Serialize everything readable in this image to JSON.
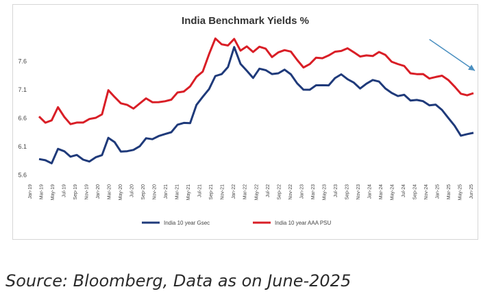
{
  "chart_data": {
    "type": "line",
    "title": "India Benchmark Yields %",
    "xlabel": "",
    "ylabel": "",
    "ylim": [
      5.5,
      8.0
    ],
    "y_ticks": [
      "5.6",
      "6.1",
      "6.6",
      "7.1",
      "7.6"
    ],
    "y_tick_values": [
      5.6,
      6.1,
      6.6,
      7.1,
      7.6
    ],
    "x_tick_labels": [
      "Jan-19",
      "Mar-19",
      "May-19",
      "Jul-19",
      "Sep-19",
      "Nov-19",
      "Jan-20",
      "Mar-20",
      "May-20",
      "Jul-20",
      "Sep-20",
      "Nov-20",
      "Jan-21",
      "Mar-21",
      "May-21",
      "Jul-21",
      "Sep-21",
      "Nov-21",
      "Jan-22",
      "Mar-22",
      "May-22",
      "Jul-22",
      "Sep-22",
      "Nov-22",
      "Jan-23",
      "Mar-23",
      "May-23",
      "Jul-23",
      "Sep-23",
      "Nov-23",
      "Jan-24",
      "Mar-24",
      "May-24",
      "Jul-24",
      "Sep-24",
      "Nov-24",
      "Jan-25",
      "Mar-25",
      "May-25",
      "Jun-25"
    ],
    "grid": false,
    "legend_position": "bottom",
    "series": [
      {
        "name": "India 10 year Gsec",
        "color": "#1f3a7a",
        "values": [
          5.85,
          5.82,
          5.84,
          6.05,
          6.0,
          5.92,
          5.9,
          5.88,
          5.86,
          5.88,
          5.95,
          6.22,
          6.15,
          6.05,
          6.0,
          6.02,
          6.1,
          6.2,
          6.25,
          6.3,
          6.28,
          6.35,
          6.45,
          6.5,
          6.55,
          6.8,
          6.95,
          7.1,
          7.3,
          7.4,
          7.5,
          7.8,
          7.55,
          7.4,
          7.3,
          7.5,
          7.4,
          7.35,
          7.38,
          7.42,
          7.4,
          7.2,
          7.05,
          7.1,
          7.15,
          7.18,
          7.2,
          7.25,
          7.35,
          7.28,
          7.2,
          7.15,
          7.18,
          7.22,
          7.25,
          7.1,
          7.05,
          7.0,
          6.95,
          6.9,
          6.92,
          6.88,
          6.85,
          6.8,
          6.7,
          6.62,
          6.45,
          6.3,
          6.32,
          6.28
        ]
      },
      {
        "name": "India 10 year AAA PSU",
        "color": "#d91e26",
        "values": [
          6.6,
          6.5,
          6.55,
          6.75,
          6.65,
          6.5,
          6.48,
          6.52,
          6.55,
          6.6,
          6.7,
          7.05,
          6.95,
          6.85,
          6.8,
          6.8,
          6.85,
          6.9,
          6.88,
          6.85,
          6.9,
          6.95,
          7.0,
          7.05,
          7.15,
          7.3,
          7.45,
          7.7,
          7.95,
          7.9,
          7.85,
          8.0,
          7.8,
          7.8,
          7.75,
          7.85,
          7.8,
          7.7,
          7.72,
          7.75,
          7.78,
          7.6,
          7.5,
          7.55,
          7.6,
          7.65,
          7.7,
          7.75,
          7.8,
          7.78,
          7.72,
          7.7,
          7.68,
          7.7,
          7.75,
          7.65,
          7.6,
          7.55,
          7.5,
          7.4,
          7.32,
          7.35,
          7.32,
          7.3,
          7.35,
          7.25,
          7.1,
          7.05,
          7.0,
          7.02
        ]
      }
    ],
    "annotations": [
      {
        "type": "trend-arrow",
        "from": {
          "index": 62,
          "value": 7.85
        },
        "to": {
          "index": 69,
          "value": 7.35
        },
        "color": "#4a8fc0"
      }
    ]
  },
  "source_note": "Source: Bloomberg, Data as on June-2025"
}
